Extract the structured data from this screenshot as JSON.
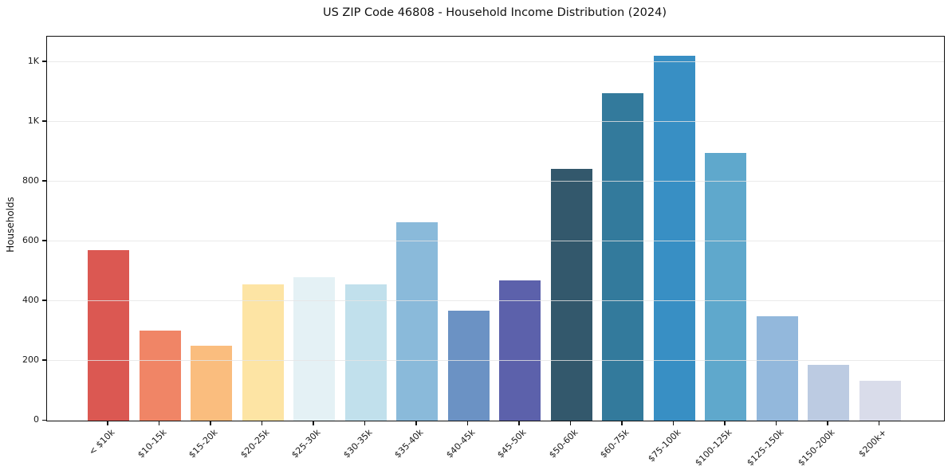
{
  "chart_data": {
    "type": "bar",
    "title": "US ZIP Code 46808 - Household Income Distribution (2024)",
    "xlabel": "",
    "ylabel": "Households",
    "categories": [
      "< $10k",
      "$10-15k",
      "$15-20k",
      "$20-25k",
      "$25-30k",
      "$30-35k",
      "$35-40k",
      "$40-45k",
      "$45-50k",
      "$50-60k",
      "$60-75k",
      "$75-100k",
      "$100-125k",
      "$125-150k",
      "$150-200k",
      "$200k+"
    ],
    "values": [
      570,
      300,
      250,
      455,
      480,
      455,
      665,
      368,
      470,
      843,
      1097,
      1222,
      897,
      348,
      186,
      133
    ],
    "bar_colors": [
      "#db5852",
      "#f08566",
      "#fabd7e",
      "#fde4a4",
      "#e4f1f5",
      "#c1e0ec",
      "#8abada",
      "#6b92c4",
      "#5c61ab",
      "#33586c",
      "#337a9c",
      "#388fc4",
      "#5fa8cc",
      "#93b8dc",
      "#bccbe2",
      "#d9dcea"
    ],
    "ylim": [
      0,
      1285
    ],
    "yticks": {
      "values": [
        0,
        200,
        400,
        600,
        800,
        1000,
        1200
      ],
      "labels": [
        "0",
        "200",
        "400",
        "600",
        "800",
        "1K",
        "1K"
      ]
    },
    "grid": "horizontal",
    "legend": "none",
    "background_color": "#ffffff",
    "spine_color": "#0f0f0f",
    "grid_color": "#e5e5e5",
    "text_color": "#1a1a1a"
  }
}
